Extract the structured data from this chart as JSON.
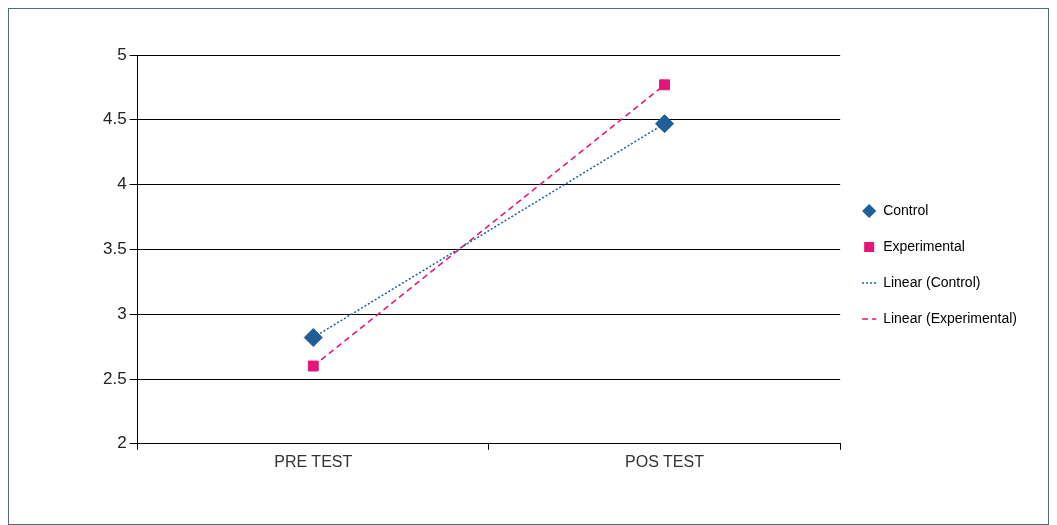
{
  "chart_data": {
    "type": "scatter",
    "categories": [
      "PRE TEST",
      "POS TEST"
    ],
    "series": [
      {
        "name": "Control",
        "type": "scatter",
        "color": "#1f5f99",
        "marker": "diamond",
        "values": [
          2.82,
          4.47
        ]
      },
      {
        "name": "Experimental",
        "type": "scatter",
        "color": "#e5157a",
        "marker": "square",
        "values": [
          2.6,
          4.77
        ]
      },
      {
        "name": "Linear (Control)",
        "type": "line",
        "color": "#1f5f99",
        "marker": "none",
        "line_style": "dotted",
        "values": [
          2.82,
          4.47
        ]
      },
      {
        "name": "Linear (Experimental)",
        "type": "line",
        "color": "#e5157a",
        "marker": "none",
        "line_style": "dashed",
        "values": [
          2.6,
          4.77
        ]
      }
    ],
    "ylim": [
      2,
      5
    ],
    "yticks": [
      2,
      2.5,
      3,
      3.5,
      4,
      4.5,
      5
    ],
    "grid": "y",
    "legend": "right"
  }
}
